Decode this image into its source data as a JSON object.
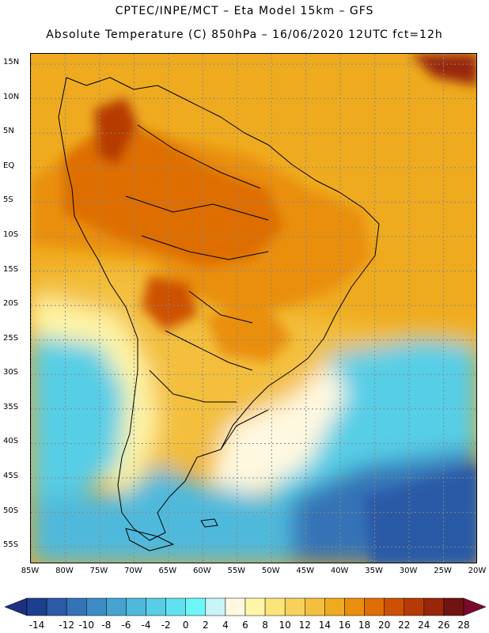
{
  "header": {
    "line1": "CPTEC/INPE/MCT –  Eta Model 15km – GFS",
    "line2": "Absolute Temperature (C) 850hPa – 16/06/2020 12UTC fct=12h"
  },
  "map": {
    "lat_labels": [
      "15N",
      "10N",
      "5N",
      "EQ",
      "5S",
      "10S",
      "15S",
      "20S",
      "25S",
      "30S",
      "35S",
      "40S",
      "45S",
      "50S",
      "55S"
    ],
    "lon_labels": [
      "85W",
      "80W",
      "75W",
      "70W",
      "65W",
      "60W",
      "55W",
      "50W",
      "45W",
      "40W",
      "35W",
      "30W",
      "25W",
      "20W"
    ],
    "regions": [
      {
        "name": "tropical-north",
        "temp_c": 18
      },
      {
        "name": "amazon-basin",
        "temp_c": 22
      },
      {
        "name": "colombia-andes-hot",
        "temp_c": 26
      },
      {
        "name": "chaco-hot",
        "temp_c": 22
      },
      {
        "name": "central-brazil-warm",
        "temp_c": 20
      },
      {
        "name": "subtropical-band",
        "temp_c": 14
      },
      {
        "name": "pacific-transition",
        "temp_c": 8
      },
      {
        "name": "south-pacific-cool",
        "temp_c": 2
      },
      {
        "name": "atlantic-cool",
        "temp_c": 2
      },
      {
        "name": "patagonia-cold",
        "temp_c": -2
      },
      {
        "name": "south-atlantic-cold",
        "temp_c": -10
      },
      {
        "name": "caribbean-hot",
        "temp_c": 24
      }
    ]
  },
  "colorbar": {
    "labels": [
      "-14",
      "-12",
      "-10",
      "-8",
      "-6",
      "-4",
      "-2",
      "0",
      "2",
      "4",
      "6",
      "8",
      "10",
      "12",
      "14",
      "16",
      "18",
      "20",
      "22",
      "24",
      "26",
      "28"
    ],
    "colors": [
      "#1c3f8f",
      "#2b5aa6",
      "#3473b6",
      "#3d8cc4",
      "#46a3d0",
      "#4fb9dc",
      "#57cee6",
      "#60e2ee",
      "#6ef6f6",
      "#c9f4f8",
      "#fff8e0",
      "#fff5a6",
      "#fbe479",
      "#f7d25a",
      "#f3bf3e",
      "#efab1f",
      "#e98f0e",
      "#de6e06",
      "#cc5105",
      "#b53a05",
      "#97260a",
      "#6f1410"
    ],
    "under_color": "#1c2f80",
    "over_color": "#7a0a2c"
  }
}
